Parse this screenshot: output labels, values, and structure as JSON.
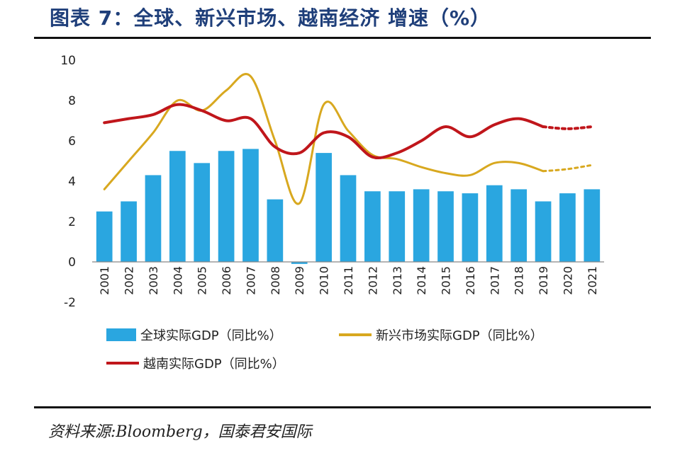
{
  "header": {
    "title": "图表 7：全球、新兴市场、越南经济 增速（%）"
  },
  "footer": {
    "source": "资料来源:Bloomberg，国泰君安国际"
  },
  "colors": {
    "bar": "#2aa6e0",
    "emerging": "#d8a81f",
    "vietnam": "#c0161b",
    "title": "#1f3f7a"
  },
  "chart_data": {
    "type": "bar",
    "categories": [
      "2001",
      "2002",
      "2003",
      "2004",
      "2005",
      "2006",
      "2007",
      "2008",
      "2009",
      "2010",
      "2011",
      "2012",
      "2013",
      "2014",
      "2015",
      "2016",
      "2017",
      "2018",
      "2019",
      "2020",
      "2021"
    ],
    "ylim": [
      -2,
      10
    ],
    "yticks": [
      -2,
      0,
      2,
      4,
      6,
      8,
      10
    ],
    "grid": false,
    "legend_position": "bottom",
    "series": [
      {
        "name": "全球实际GDP（同比%）",
        "type": "bar",
        "values": [
          2.5,
          3.0,
          4.3,
          5.5,
          4.9,
          5.5,
          5.6,
          3.1,
          -0.1,
          5.4,
          4.3,
          3.5,
          3.5,
          3.6,
          3.5,
          3.4,
          3.8,
          3.6,
          3.0,
          3.4,
          3.6
        ]
      },
      {
        "name": "新兴市场实际GDP（同比%）",
        "type": "line",
        "values": [
          3.6,
          5.0,
          6.4,
          8.0,
          7.5,
          8.5,
          9.2,
          6.0,
          2.9,
          7.8,
          6.5,
          5.3,
          5.1,
          4.7,
          4.4,
          4.3,
          4.9,
          4.9,
          4.5,
          4.6,
          4.8
        ],
        "forecast_from": "2019"
      },
      {
        "name": "越南实际GDP（同比%）",
        "type": "line",
        "values": [
          6.9,
          7.1,
          7.3,
          7.8,
          7.5,
          7.0,
          7.1,
          5.7,
          5.4,
          6.4,
          6.2,
          5.2,
          5.4,
          6.0,
          6.7,
          6.2,
          6.8,
          7.1,
          6.7,
          6.6,
          6.7
        ],
        "forecast_from": "2019"
      }
    ]
  }
}
